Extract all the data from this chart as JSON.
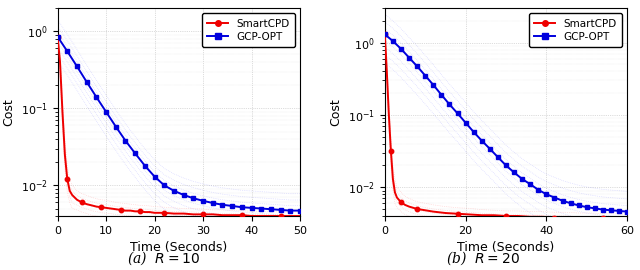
{
  "fig_width": 6.4,
  "fig_height": 2.7,
  "dpi": 100,
  "subplots": [
    {
      "label": "(a)  $R = 10$",
      "xlim": [
        0,
        50
      ],
      "xticks": [
        0,
        10,
        20,
        30,
        40,
        50
      ],
      "xlabel": "Time (Seconds)",
      "ylabel": "Cost",
      "ylim": [
        0.004,
        2.0
      ],
      "smartcpd": {
        "mean_x": [
          0.0,
          0.5,
          1.0,
          1.5,
          2.0,
          2.5,
          3.0,
          4.0,
          5.0,
          6.0,
          7.0,
          8.0,
          9.0,
          10.0,
          11.0,
          12.0,
          13.0,
          14.0,
          15.0,
          16.0,
          17.0,
          18.0,
          19.0,
          20.0,
          22.0,
          24.0,
          26.0,
          28.0,
          30.0,
          32.0,
          34.0,
          36.0,
          38.0,
          40.0,
          42.0,
          44.0,
          46.0,
          48.0,
          50.0
        ],
        "mean_y": [
          0.85,
          0.4,
          0.09,
          0.025,
          0.012,
          0.0085,
          0.0075,
          0.0065,
          0.006,
          0.0057,
          0.0055,
          0.0053,
          0.0052,
          0.0051,
          0.005,
          0.0049,
          0.0048,
          0.0047,
          0.0047,
          0.0046,
          0.0046,
          0.0045,
          0.0045,
          0.0044,
          0.0044,
          0.0043,
          0.0043,
          0.0042,
          0.0042,
          0.0042,
          0.0041,
          0.0041,
          0.0041,
          0.004,
          0.004,
          0.004,
          0.004,
          0.004,
          0.004
        ],
        "std_up": [
          0.95,
          0.55,
          0.14,
          0.04,
          0.018,
          0.012,
          0.01,
          0.0085,
          0.0078,
          0.0074,
          0.007,
          0.0067,
          0.0065,
          0.0064,
          0.0062,
          0.006,
          0.0059,
          0.0058,
          0.0057,
          0.0056,
          0.0055,
          0.0055,
          0.0054,
          0.0053,
          0.0052,
          0.0051,
          0.005,
          0.005,
          0.0049,
          0.0048,
          0.0048,
          0.0047,
          0.0047,
          0.0046,
          0.0046,
          0.0046,
          0.0045,
          0.0045,
          0.0045
        ],
        "std_down": [
          0.75,
          0.28,
          0.06,
          0.016,
          0.008,
          0.006,
          0.005,
          0.0048,
          0.0045,
          0.0043,
          0.0041,
          0.004,
          0.0039,
          0.0038,
          0.0038,
          0.0037,
          0.0037,
          0.0036,
          0.0036,
          0.0035,
          0.0035,
          0.0035,
          0.0034,
          0.0034,
          0.0034,
          0.0033,
          0.0033,
          0.0033,
          0.0032,
          0.0032,
          0.0032,
          0.0032,
          0.0031,
          0.0031,
          0.0031,
          0.0031,
          0.0031,
          0.003,
          0.003
        ]
      },
      "gcpopt": {
        "mean_x": [
          0.0,
          2.0,
          4.0,
          6.0,
          8.0,
          10.0,
          12.0,
          14.0,
          16.0,
          18.0,
          20.0,
          22.0,
          24.0,
          26.0,
          28.0,
          30.0,
          32.0,
          34.0,
          36.0,
          38.0,
          40.0,
          42.0,
          44.0,
          46.0,
          48.0,
          50.0
        ],
        "mean_y": [
          0.85,
          0.55,
          0.35,
          0.22,
          0.14,
          0.09,
          0.058,
          0.038,
          0.026,
          0.018,
          0.013,
          0.01,
          0.0085,
          0.0075,
          0.0068,
          0.0063,
          0.0059,
          0.0056,
          0.0054,
          0.0052,
          0.0051,
          0.005,
          0.0049,
          0.0048,
          0.0047,
          0.0047
        ],
        "n_band_lines": 8,
        "band_spread": 0.55
      }
    },
    {
      "label": "(b)  $R = 20$",
      "xlim": [
        0,
        60
      ],
      "xticks": [
        0,
        20,
        40,
        60
      ],
      "xlabel": "Time (Seconds)",
      "ylabel": "Cost",
      "ylim": [
        0.004,
        3.0
      ],
      "smartcpd": {
        "mean_x": [
          0.0,
          0.3,
          0.6,
          1.0,
          1.5,
          2.0,
          2.5,
          3.0,
          4.0,
          5.0,
          6.0,
          7.0,
          8.0,
          10.0,
          12.0,
          15.0,
          18.0,
          21.0,
          24.0,
          27.0,
          30.0,
          33.0,
          36.0,
          39.0,
          42.0,
          45.0,
          48.0,
          51.0,
          54.0,
          57.0,
          60.0
        ],
        "mean_y": [
          1.3,
          0.65,
          0.3,
          0.1,
          0.032,
          0.013,
          0.0085,
          0.0072,
          0.0062,
          0.0057,
          0.0054,
          0.0052,
          0.005,
          0.0048,
          0.0046,
          0.0044,
          0.0043,
          0.0042,
          0.0041,
          0.0041,
          0.004,
          0.004,
          0.0039,
          0.0039,
          0.0038,
          0.0038,
          0.0038,
          0.0037,
          0.0037,
          0.0037,
          0.0037
        ],
        "std_up": [
          1.45,
          0.8,
          0.42,
          0.15,
          0.05,
          0.02,
          0.013,
          0.01,
          0.0085,
          0.0075,
          0.007,
          0.0066,
          0.0063,
          0.006,
          0.0057,
          0.0054,
          0.0052,
          0.0051,
          0.0049,
          0.0048,
          0.0047,
          0.0047,
          0.0046,
          0.0046,
          0.0045,
          0.0045,
          0.0044,
          0.0044,
          0.0043,
          0.0043,
          0.0042
        ],
        "std_down": [
          1.1,
          0.45,
          0.2,
          0.065,
          0.02,
          0.009,
          0.006,
          0.0053,
          0.0046,
          0.0042,
          0.004,
          0.0038,
          0.0037,
          0.0035,
          0.0034,
          0.0033,
          0.0032,
          0.0031,
          0.0031,
          0.003,
          0.003,
          0.003,
          0.0029,
          0.0029,
          0.0029,
          0.0028,
          0.0028,
          0.0028,
          0.0028,
          0.0027,
          0.0027
        ]
      },
      "gcpopt": {
        "mean_x": [
          0.0,
          2.0,
          4.0,
          6.0,
          8.0,
          10.0,
          12.0,
          14.0,
          16.0,
          18.0,
          20.0,
          22.0,
          24.0,
          26.0,
          28.0,
          30.0,
          32.0,
          34.0,
          36.0,
          38.0,
          40.0,
          42.0,
          44.0,
          46.0,
          48.0,
          50.0,
          52.0,
          54.0,
          56.0,
          58.0,
          60.0
        ],
        "mean_y": [
          1.3,
          1.05,
          0.82,
          0.62,
          0.47,
          0.35,
          0.26,
          0.19,
          0.14,
          0.105,
          0.078,
          0.058,
          0.044,
          0.034,
          0.026,
          0.02,
          0.016,
          0.013,
          0.011,
          0.0092,
          0.008,
          0.0072,
          0.0065,
          0.006,
          0.0056,
          0.0053,
          0.0051,
          0.0049,
          0.0048,
          0.0047,
          0.0046
        ],
        "n_band_lines": 8,
        "band_spread": 0.7
      }
    }
  ],
  "legend_smartcpd": "SmartCPD",
  "legend_gcpopt": "GCP-OPT",
  "smartcpd_color": "#EE0000",
  "gcpopt_color": "#0000DD",
  "gcpopt_band_color": "#6666FF",
  "smartcpd_band_color": "#FF6666",
  "grid_color": "#AAAAAA",
  "background_color": "#FFFFFF"
}
